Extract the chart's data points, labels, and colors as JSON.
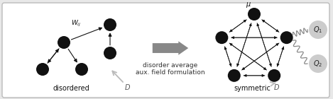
{
  "bg_color": "#e8e8e8",
  "box_facecolor": "#ffffff",
  "box_edgecolor": "#bbbbbb",
  "node_color": "#111111",
  "arrow_color": "#111111",
  "gray_color": "#999999",
  "big_arrow_color": "#888888",
  "Q_circle_color": "#cccccc",
  "title_text": "disordered",
  "title_text2": "symmetric",
  "middle_text1": "disorder average",
  "middle_text2": "aux. field formulation",
  "label_Wij": "$W_{ij}$",
  "label_D1": "$D$",
  "label_D2": "$D$",
  "label_mu": "$\\mu$",
  "label_Q1": "$Q_1$",
  "label_Q2": "$Q_2$",
  "figsize": [
    4.69,
    1.4
  ],
  "dpi": 100
}
